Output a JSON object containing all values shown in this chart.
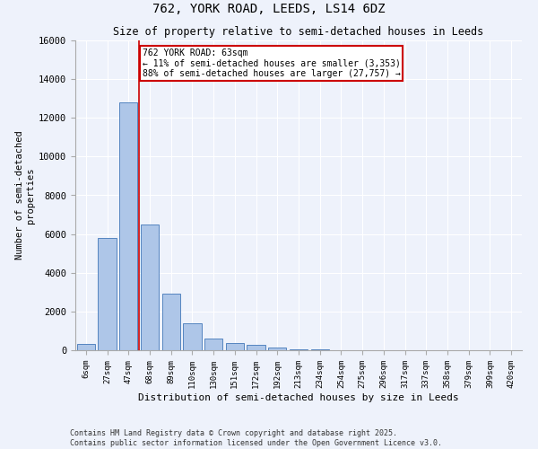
{
  "title1": "762, YORK ROAD, LEEDS, LS14 6DZ",
  "title2": "Size of property relative to semi-detached houses in Leeds",
  "xlabel": "Distribution of semi-detached houses by size in Leeds",
  "ylabel": "Number of semi-detached\nproperties",
  "categories": [
    "6sqm",
    "27sqm",
    "47sqm",
    "68sqm",
    "89sqm",
    "110sqm",
    "130sqm",
    "151sqm",
    "172sqm",
    "192sqm",
    "213sqm",
    "234sqm",
    "254sqm",
    "275sqm",
    "296sqm",
    "317sqm",
    "337sqm",
    "358sqm",
    "379sqm",
    "399sqm",
    "420sqm"
  ],
  "values": [
    310,
    5800,
    12800,
    6500,
    2900,
    1400,
    600,
    380,
    300,
    160,
    60,
    30,
    15,
    8,
    5,
    3,
    2,
    1,
    1,
    0,
    0
  ],
  "bar_color": "#aec6e8",
  "bar_edge_color": "#5585c0",
  "vline_x": 2.5,
  "vline_color": "#cc0000",
  "annotation_text": "762 YORK ROAD: 63sqm\n← 11% of semi-detached houses are smaller (3,353)\n88% of semi-detached houses are larger (27,757) →",
  "annotation_box_color": "#ffffff",
  "annotation_box_edge": "#cc0000",
  "ylim": [
    0,
    16000
  ],
  "yticks": [
    0,
    2000,
    4000,
    6000,
    8000,
    10000,
    12000,
    14000,
    16000
  ],
  "background_color": "#eef2fb",
  "footer1": "Contains HM Land Registry data © Crown copyright and database right 2025.",
  "footer2": "Contains public sector information licensed under the Open Government Licence v3.0."
}
